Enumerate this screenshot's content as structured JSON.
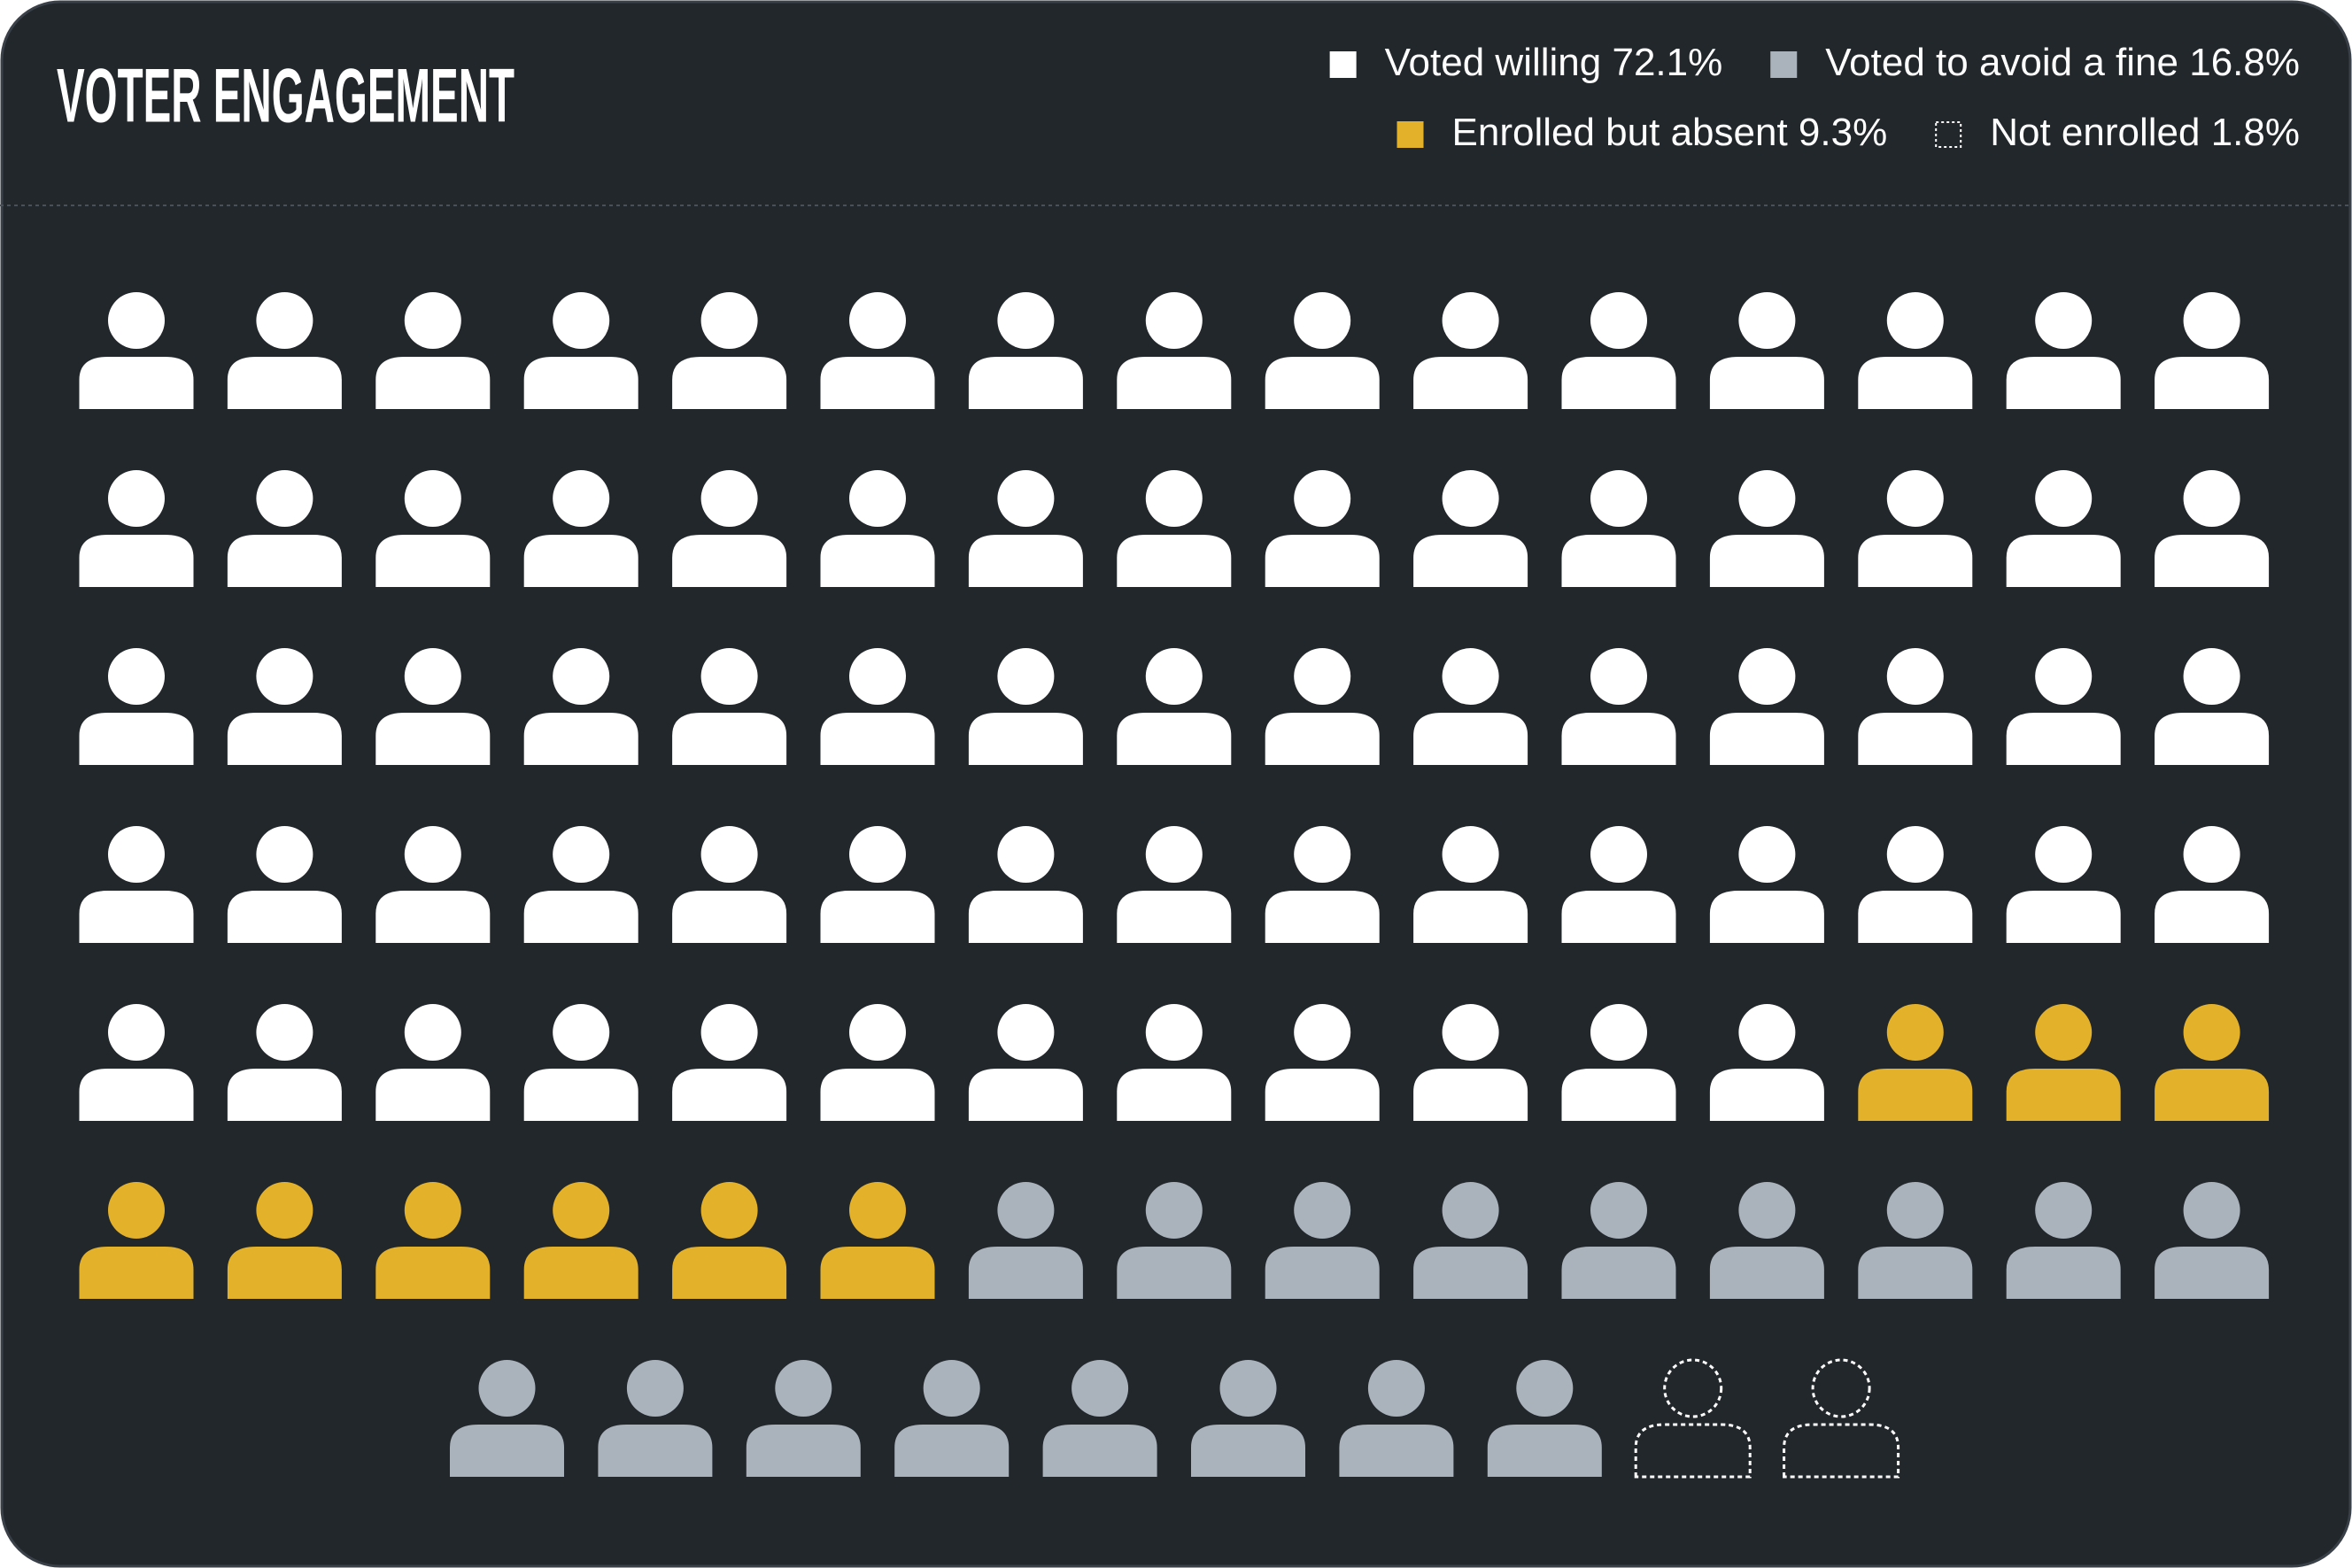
{
  "chart_data": {
    "type": "pictogram",
    "title": "VOTER ENGAGEMENT",
    "series": [
      {
        "name": "Voted willing",
        "value": 72.1,
        "value_label": "72.1%",
        "color": "#ffffff"
      },
      {
        "name": "Voted to avoid a fine",
        "value": 16.8,
        "value_label": "16.8%",
        "color": "#aab3bc"
      },
      {
        "name": "Enrolled but absent",
        "value": 9.3,
        "value_label": "9.3%",
        "color": "#e3b12a"
      },
      {
        "name": "Not enrolled",
        "value": 1.8,
        "value_label": "1.8%",
        "color": "#ffffff",
        "outline": true
      }
    ]
  }
}
